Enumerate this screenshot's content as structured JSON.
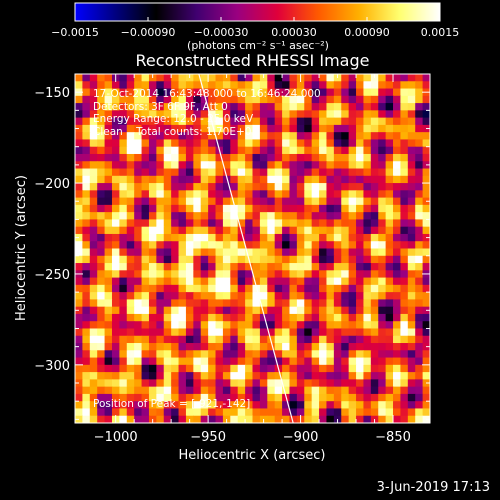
{
  "colorbar": {
    "ticks": [
      "-0.0015",
      "-0.00090",
      "-0.00030",
      "0.00030",
      "0.00090",
      "0.0015"
    ],
    "units": "(photons cm⁻² s⁻¹ asec⁻²)",
    "range": [
      -0.0015,
      0.0015
    ],
    "colormap": [
      "#0000ff",
      "#000080",
      "#000000",
      "#400070",
      "#9a0080",
      "#e0003a",
      "#ff5a00",
      "#ffb000",
      "#ffff70",
      "#ffffff"
    ]
  },
  "plot": {
    "title": "Reconstructed RHESSI Image",
    "annotations": [
      "17-Oct-2014 16:43:48.000 to 16:46:24.000",
      "Detectors: 3F 6F 9F, Att 0",
      "Energy Range: 12.0 - 25.0 keV",
      "Clean    Total counts: 1.70E+03"
    ],
    "peak_label": "Position of Peak = [-921,-142]"
  },
  "footer": {
    "date": "3-Jun-2019 17:13"
  },
  "chart_data": {
    "type": "heatmap",
    "title": "Reconstructed RHESSI Image",
    "xlabel": "Heliocentric X (arcsec)",
    "ylabel": "Heliocentric Y (arcsec)",
    "xlim": [
      -1022,
      -830
    ],
    "ylim": [
      -332,
      -140
    ],
    "x_ticks": [
      -1000,
      -950,
      -900,
      -850
    ],
    "y_ticks": [
      -150,
      -200,
      -250,
      -300
    ],
    "x_tick_labels": [
      "−1000",
      "−950",
      "−900",
      "−850"
    ],
    "y_tick_labels": [
      "−150",
      "−200",
      "−250",
      "−300"
    ],
    "limb_line": {
      "x": [
        -955,
        -904
      ],
      "y": [
        -140,
        -332
      ]
    },
    "peak": [
      -921,
      -142
    ],
    "value_range": [
      -0.0015,
      0.0015
    ]
  }
}
